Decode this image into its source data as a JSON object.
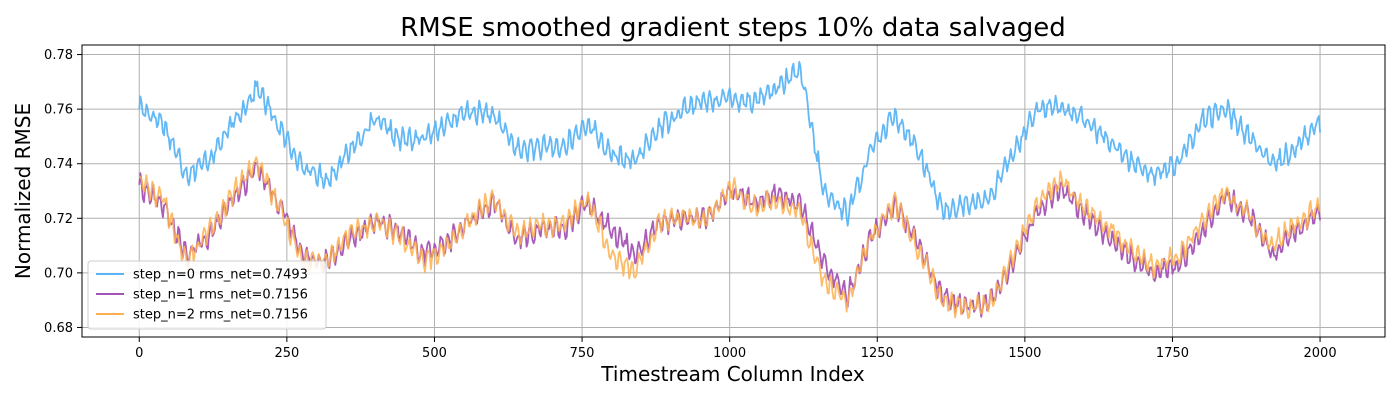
{
  "chart_data": {
    "type": "line",
    "title": "RMSE smoothed gradient steps 10% data salvaged",
    "xlabel": "Timestream Column Index",
    "ylabel": "Normalized RMSE",
    "xlim": [
      -97,
      2110
    ],
    "ylim": [
      0.6765,
      0.7835
    ],
    "xticks": [
      0,
      250,
      500,
      750,
      1000,
      1250,
      1500,
      1750,
      2000
    ],
    "xtick_labels": [
      "0",
      "250",
      "500",
      "750",
      "1000",
      "1250",
      "1500",
      "1750",
      "2000"
    ],
    "yticks": [
      0.68,
      0.7,
      0.72,
      0.74,
      0.76,
      0.78
    ],
    "ytick_labels": [
      "0.68",
      "0.70",
      "0.72",
      "0.74",
      "0.76",
      "0.78"
    ],
    "grid": true,
    "legend_position": "lower-left",
    "x": [
      0,
      40,
      80,
      120,
      160,
      200,
      240,
      280,
      320,
      360,
      400,
      440,
      480,
      520,
      560,
      600,
      640,
      680,
      720,
      760,
      800,
      840,
      880,
      920,
      960,
      1000,
      1040,
      1080,
      1120,
      1160,
      1200,
      1240,
      1280,
      1320,
      1360,
      1400,
      1440,
      1480,
      1520,
      1560,
      1600,
      1640,
      1680,
      1720,
      1760,
      1800,
      1840,
      1880,
      1920,
      1960,
      2000
    ],
    "series": [
      {
        "name": "step_n=0 rms_net=0.7493",
        "color": "#5bb4f5",
        "values": [
          0.761,
          0.755,
          0.736,
          0.742,
          0.755,
          0.768,
          0.752,
          0.738,
          0.734,
          0.746,
          0.756,
          0.749,
          0.749,
          0.755,
          0.759,
          0.758,
          0.745,
          0.746,
          0.746,
          0.755,
          0.743,
          0.741,
          0.753,
          0.76,
          0.763,
          0.764,
          0.763,
          0.768,
          0.774,
          0.729,
          0.722,
          0.745,
          0.758,
          0.745,
          0.723,
          0.725,
          0.727,
          0.744,
          0.76,
          0.761,
          0.756,
          0.749,
          0.741,
          0.736,
          0.74,
          0.756,
          0.76,
          0.75,
          0.739,
          0.746,
          0.755
        ],
        "noise": 0.0045
      },
      {
        "name": "step_n=1 rms_net=0.7156",
        "color": "#a553b5",
        "values": [
          0.732,
          0.725,
          0.706,
          0.714,
          0.727,
          0.739,
          0.724,
          0.706,
          0.704,
          0.713,
          0.719,
          0.715,
          0.707,
          0.711,
          0.719,
          0.726,
          0.712,
          0.716,
          0.716,
          0.726,
          0.716,
          0.707,
          0.718,
          0.72,
          0.72,
          0.73,
          0.726,
          0.729,
          0.725,
          0.703,
          0.692,
          0.713,
          0.725,
          0.71,
          0.691,
          0.688,
          0.689,
          0.704,
          0.722,
          0.732,
          0.722,
          0.713,
          0.706,
          0.7,
          0.703,
          0.715,
          0.728,
          0.721,
          0.707,
          0.716,
          0.722
        ],
        "noise": 0.0045
      },
      {
        "name": "step_n=2 rms_net=0.7156",
        "color": "#fdb04f",
        "values": [
          0.734,
          0.727,
          0.704,
          0.716,
          0.729,
          0.741,
          0.722,
          0.704,
          0.705,
          0.715,
          0.718,
          0.714,
          0.704,
          0.71,
          0.72,
          0.727,
          0.714,
          0.717,
          0.718,
          0.727,
          0.707,
          0.7,
          0.719,
          0.721,
          0.719,
          0.732,
          0.724,
          0.727,
          0.722,
          0.697,
          0.689,
          0.714,
          0.726,
          0.708,
          0.69,
          0.687,
          0.688,
          0.706,
          0.725,
          0.734,
          0.724,
          0.717,
          0.708,
          0.702,
          0.706,
          0.718,
          0.73,
          0.721,
          0.71,
          0.718,
          0.724
        ],
        "noise": 0.0045
      }
    ]
  }
}
